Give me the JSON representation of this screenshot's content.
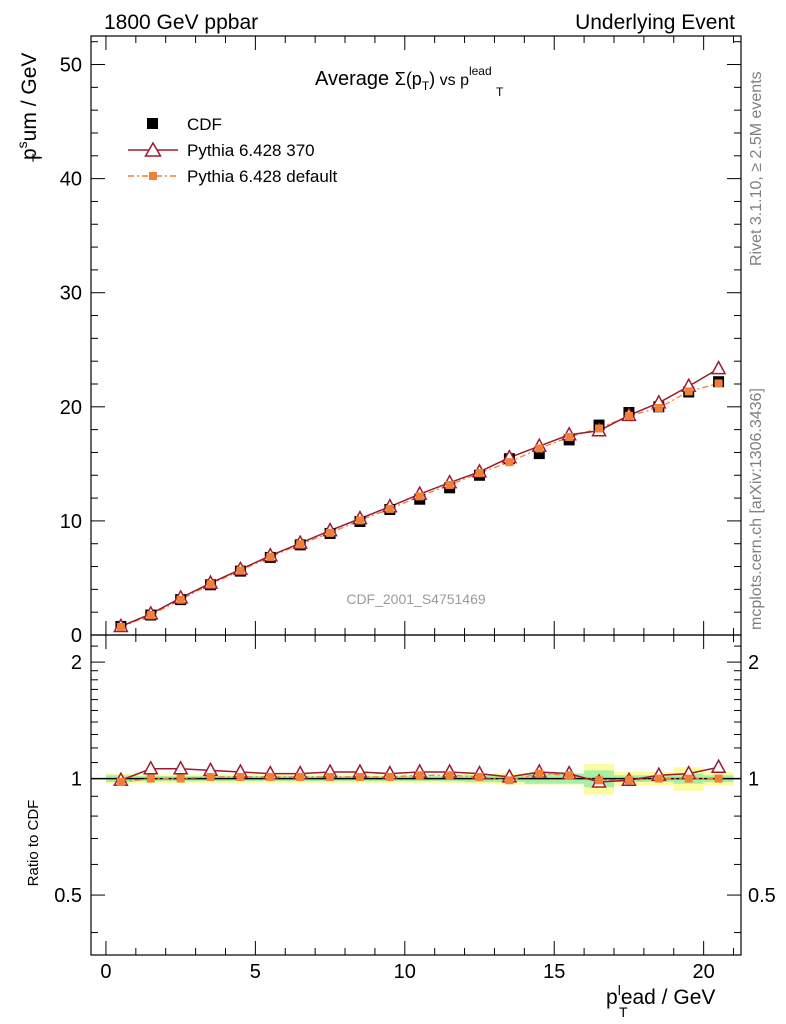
{
  "header": {
    "left": "1800 GeV ppbar",
    "right": "Underlying Event"
  },
  "side": {
    "rivet": "Rivet 3.1.10, ≥ 2.5M events",
    "mcplots": "mcplots.cern.ch [arXiv:1306.3436]"
  },
  "watermark": "CDF_2001_S4751469",
  "title": {
    "prefix": "Average ",
    "sigma": "Σ(p",
    "sigma_sub": "T",
    "sigma_close": ")",
    "vs": " vs p",
    "sub": "T",
    "sup": "lead"
  },
  "ylabel": {
    "p": "p",
    "sup": "s",
    "sub": "T",
    "rest": "um / GeV"
  },
  "xlabel": {
    "p": "p",
    "sup": "l",
    "sub": "T",
    "rest": "ead / GeV"
  },
  "ratio_ylabel": "Ratio to CDF",
  "legend": [
    {
      "label": "CDF",
      "color": "#000000",
      "marker": "square"
    },
    {
      "label": "Pythia 6.428 370",
      "color": "#9b1b30",
      "marker": "triangle"
    },
    {
      "label": "Pythia 6.428 default",
      "color": "#f07f37",
      "marker": "square-small"
    }
  ],
  "chart_data": [
    {
      "type": "line",
      "xlim": [
        -0.5,
        21.25
      ],
      "ylim": [
        0,
        52.5
      ],
      "xticks": [
        0,
        5,
        10,
        15,
        20
      ],
      "yticks": [
        0,
        10,
        20,
        30,
        40,
        50
      ],
      "ytick_labels": [
        "0",
        "10",
        "20",
        "30",
        "40",
        "50"
      ],
      "xtick_labels": [
        "0",
        "5",
        "10",
        "15",
        "20"
      ],
      "x": [
        0.5,
        1.5,
        2.5,
        3.5,
        4.5,
        5.5,
        6.5,
        7.5,
        8.5,
        9.5,
        10.5,
        11.5,
        12.5,
        13.5,
        14.5,
        15.5,
        16.5,
        17.5,
        18.5,
        19.5,
        20.5
      ],
      "series": [
        {
          "name": "CDF",
          "values": [
            0.75,
            1.75,
            3.1,
            4.4,
            5.6,
            6.8,
            7.9,
            8.9,
            9.95,
            11.0,
            11.9,
            12.9,
            14.0,
            15.45,
            15.9,
            17.1,
            18.4,
            19.5,
            20.0,
            21.3,
            22.2
          ]
        },
        {
          "name": "Pythia 6.428 370",
          "values": [
            0.75,
            1.85,
            3.25,
            4.55,
            5.75,
            6.95,
            8.05,
            9.15,
            10.2,
            11.25,
            12.35,
            13.35,
            14.3,
            15.55,
            16.55,
            17.55,
            17.9,
            19.25,
            20.35,
            21.8,
            23.35
          ]
        },
        {
          "name": "Pythia 6.428 default",
          "values": [
            0.7,
            1.75,
            3.1,
            4.45,
            5.65,
            6.85,
            7.95,
            8.95,
            10.05,
            11.05,
            12.15,
            13.15,
            14.2,
            15.15,
            16.35,
            17.35,
            18.1,
            19.2,
            19.9,
            21.35,
            22.05
          ]
        }
      ]
    },
    {
      "type": "line",
      "xlim": [
        -0.5,
        21.25
      ],
      "ylim": [
        0.35,
        2.35
      ],
      "log_scale_y": true,
      "yticks": [
        0.5,
        1,
        2
      ],
      "ytick_labels": [
        "0.5",
        "1",
        "2"
      ],
      "x": [
        0.5,
        1.5,
        2.5,
        3.5,
        4.5,
        5.5,
        6.5,
        7.5,
        8.5,
        9.5,
        10.5,
        11.5,
        12.5,
        13.5,
        14.5,
        15.5,
        16.5,
        17.5,
        18.5,
        19.5,
        20.5
      ],
      "band_inner": [
        0.02,
        0.015,
        0.015,
        0.015,
        0.015,
        0.015,
        0.015,
        0.015,
        0.015,
        0.015,
        0.015,
        0.015,
        0.02,
        0.02,
        0.03,
        0.03,
        0.05,
        0.02,
        0.02,
        0.03,
        0.02
      ],
      "band_outer": [
        0.03,
        0.025,
        0.025,
        0.025,
        0.025,
        0.025,
        0.025,
        0.025,
        0.025,
        0.025,
        0.025,
        0.025,
        0.03,
        0.035,
        0.035,
        0.035,
        0.09,
        0.04,
        0.04,
        0.07,
        0.04
      ],
      "series": [
        {
          "name": "Pythia 6.428 370",
          "values": [
            0.99,
            1.06,
            1.06,
            1.05,
            1.04,
            1.03,
            1.03,
            1.04,
            1.04,
            1.03,
            1.04,
            1.04,
            1.03,
            1.01,
            1.04,
            1.03,
            0.98,
            0.99,
            1.02,
            1.03,
            1.07
          ]
        },
        {
          "name": "Pythia 6.428 default",
          "values": [
            0.98,
            1.0,
            1.0,
            1.01,
            1.01,
            1.01,
            1.01,
            1.01,
            1.01,
            1.01,
            1.02,
            1.02,
            1.01,
            0.99,
            1.03,
            1.02,
            0.99,
            0.99,
            1.0,
            1.0,
            1.0
          ]
        }
      ]
    }
  ]
}
